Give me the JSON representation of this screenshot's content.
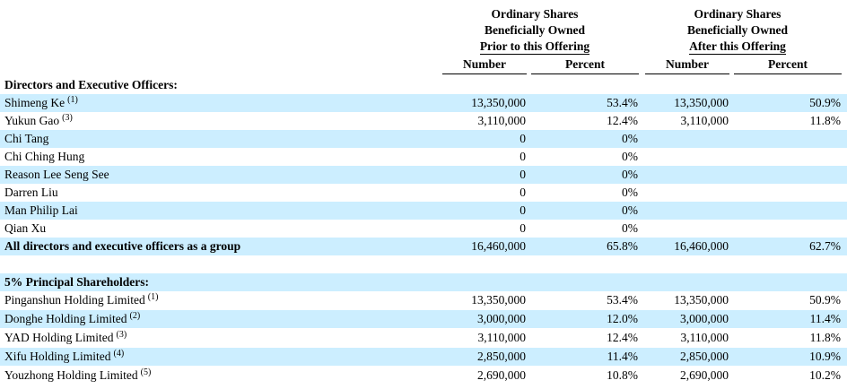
{
  "header": {
    "prior": [
      "Ordinary Shares",
      "Beneficially Owned",
      "Prior to this Offering"
    ],
    "after": [
      "Ordinary Shares",
      "Beneficially Owned",
      "After this Offering"
    ],
    "col_number": "Number",
    "col_percent": "Percent"
  },
  "sections": {
    "directors_title": "Directors and Executive Officers:",
    "principal_title": "5% Principal Shareholders:"
  },
  "directors": [
    {
      "name": "Shimeng Ke",
      "note": "(1)",
      "n1": "13,350,000",
      "p1": "53.4%",
      "n2": "13,350,000",
      "p2": "50.9%"
    },
    {
      "name": "Yukun Gao",
      "note": "(3)",
      "n1": "3,110,000",
      "p1": "12.4%",
      "n2": "3,110,000",
      "p2": "11.8%"
    },
    {
      "name": "Chi Tang",
      "note": "",
      "n1": "0",
      "p1": "0%",
      "n2": "",
      "p2": ""
    },
    {
      "name": "Chi Ching Hung",
      "note": "",
      "n1": "0",
      "p1": "0%",
      "n2": "",
      "p2": ""
    },
    {
      "name": "Reason Lee Seng See",
      "note": "",
      "n1": "0",
      "p1": "0%",
      "n2": "",
      "p2": ""
    },
    {
      "name": "Darren Liu",
      "note": "",
      "n1": "0",
      "p1": "0%",
      "n2": "",
      "p2": ""
    },
    {
      "name": "Man Philip Lai",
      "note": "",
      "n1": "0",
      "p1": "0%",
      "n2": "",
      "p2": ""
    },
    {
      "name": "Qian Xu",
      "note": "",
      "n1": "0",
      "p1": "0%",
      "n2": "",
      "p2": ""
    }
  ],
  "group_total": {
    "name": "All directors and executive officers as a group",
    "n1": "16,460,000",
    "p1": "65.8%",
    "n2": "16,460,000",
    "p2": "62.7%"
  },
  "principal": [
    {
      "name": "Pinganshun Holding Limited",
      "note": "(1)",
      "n1": "13,350,000",
      "p1": "53.4%",
      "n2": "13,350,000",
      "p2": "50.9%"
    },
    {
      "name": "Donghe Holding Limited",
      "note": "(2)",
      "n1": "3,000,000",
      "p1": "12.0%",
      "n2": "3,000,000",
      "p2": "11.4%"
    },
    {
      "name": "YAD Holding Limited",
      "note": "(3)",
      "n1": "3,110,000",
      "p1": "12.4%",
      "n2": "3,110,000",
      "p2": "11.8%"
    },
    {
      "name": "Xifu Holding Limited",
      "note": "(4)",
      "n1": "2,850,000",
      "p1": "11.4%",
      "n2": "2,850,000",
      "p2": "10.9%"
    },
    {
      "name": "Youzhong Holding Limited",
      "note": "(5)",
      "n1": "2,690,000",
      "p1": "10.8%",
      "n2": "2,690,000",
      "p2": "10.2%"
    }
  ]
}
